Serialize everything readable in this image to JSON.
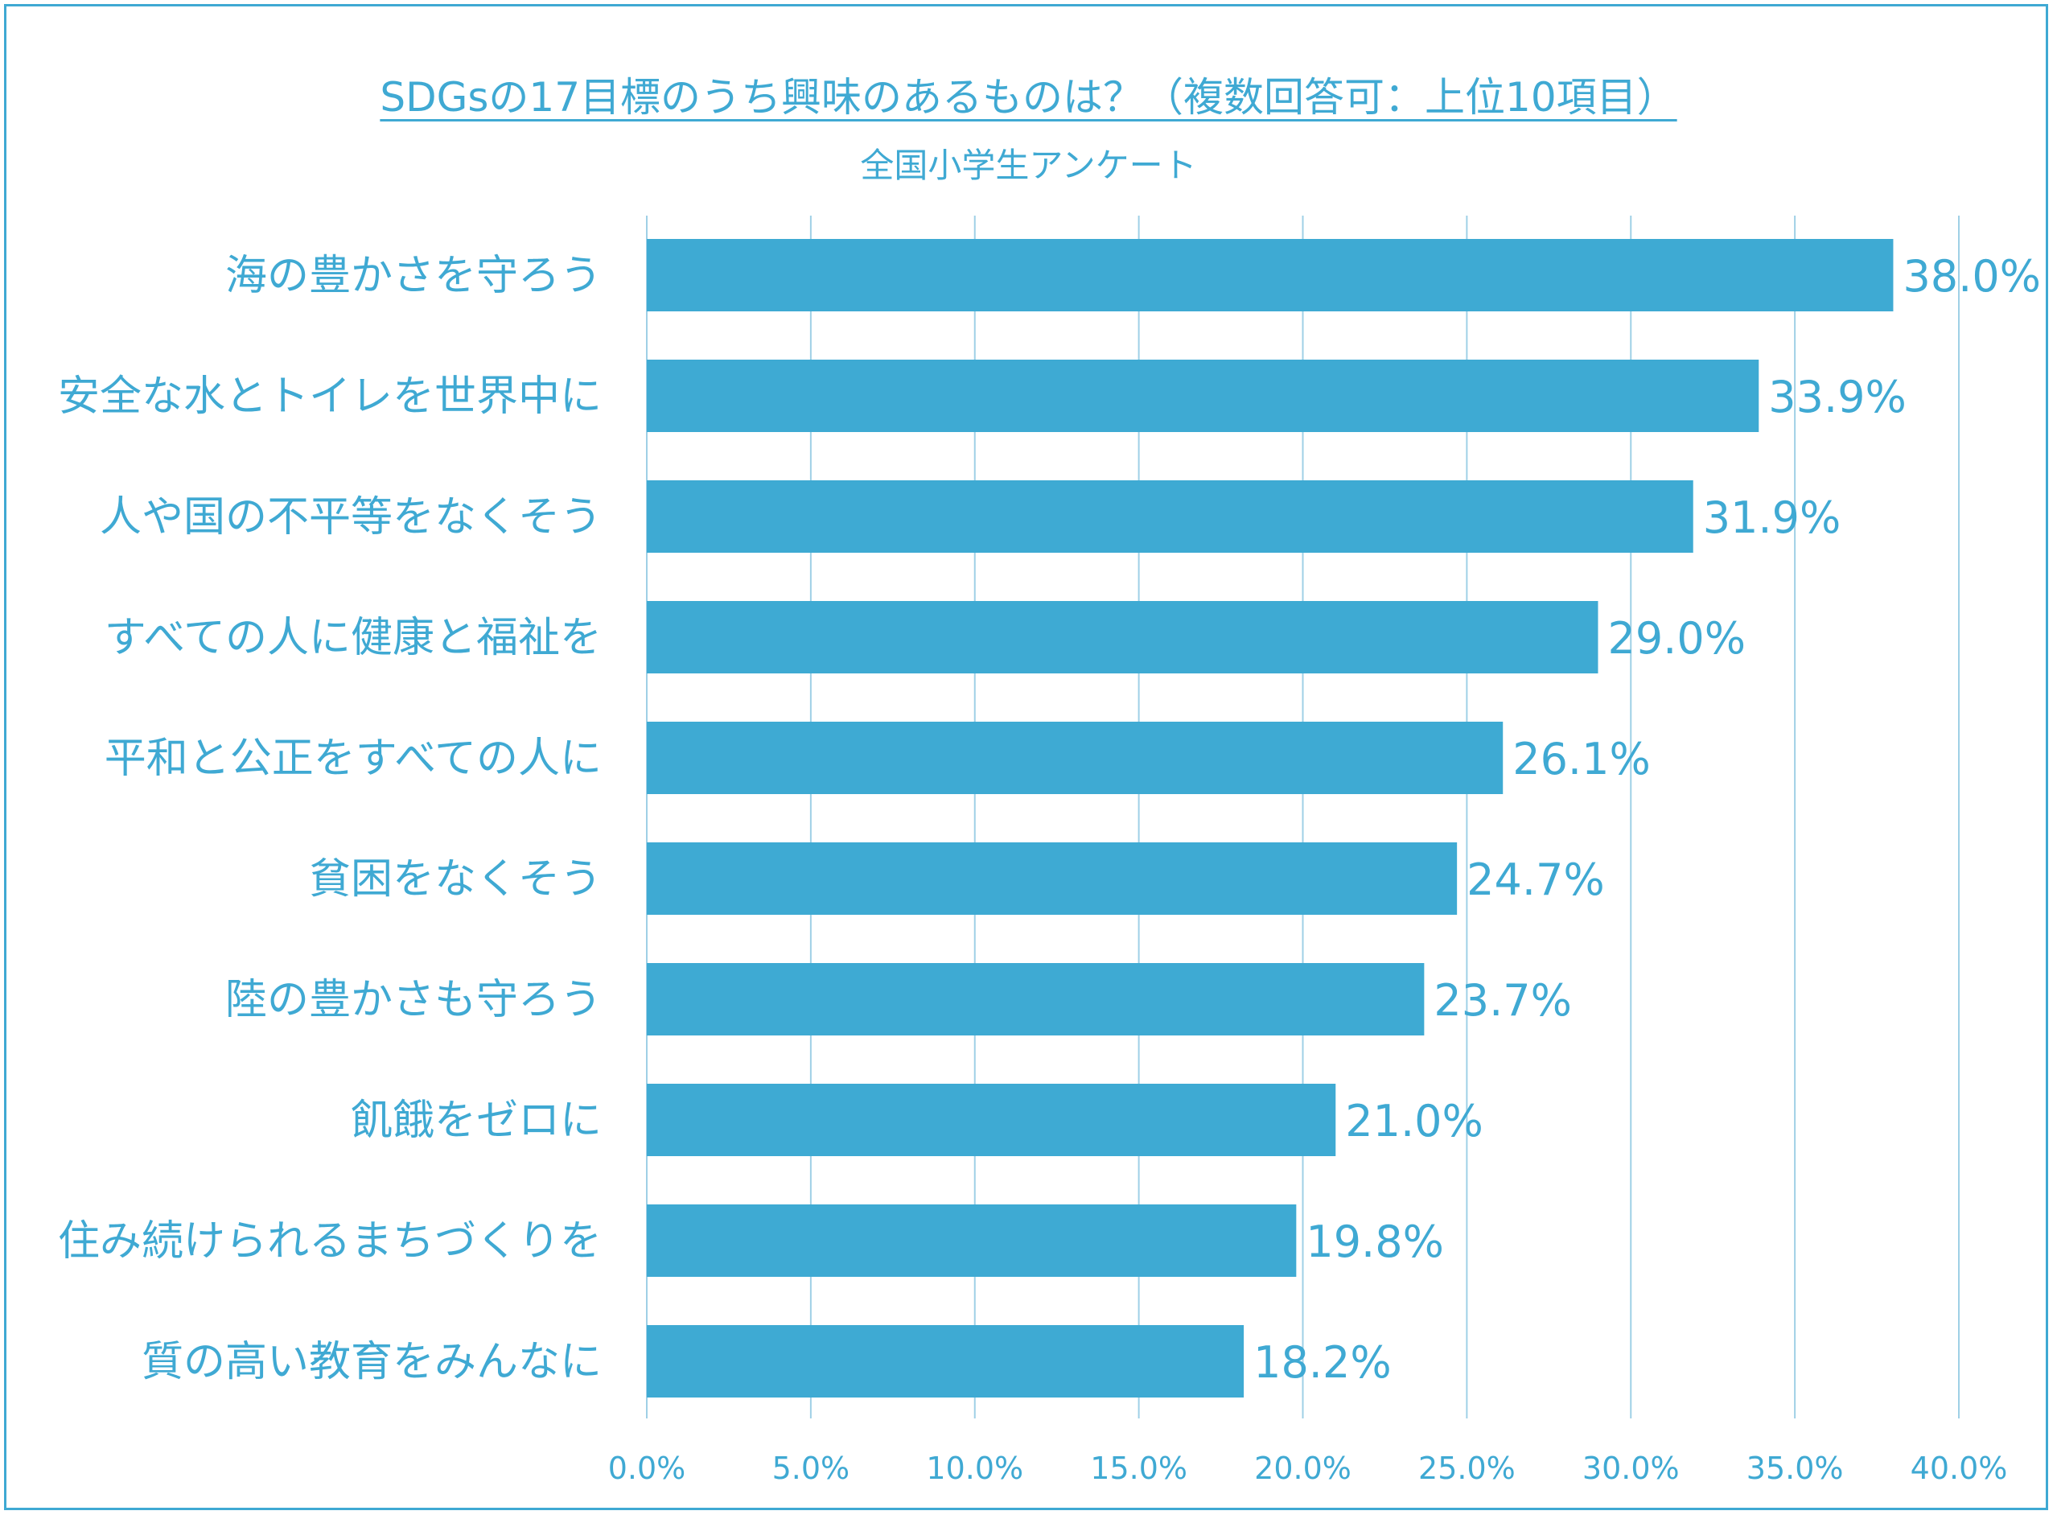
{
  "colors": {
    "bar": "#3eaad3",
    "text": "#3fa9d3",
    "grid": "#9fd0e6",
    "border": "#3fa9d3"
  },
  "chart_data": {
    "type": "bar",
    "orientation": "horizontal",
    "title": "SDGsの17目標のうち興味のあるものは？（複数回答可：上位10項目）",
    "subtitle": "全国小学生アンケート",
    "categories": [
      "海の豊かさを守ろう",
      "安全な水とトイレを世界中に",
      "人や国の不平等をなくそう",
      "すべての人に健康と福祉を",
      "平和と公正をすべての人に",
      "貧困をなくそう",
      "陸の豊かさも守ろう",
      "飢餓をゼロに",
      "住み続けられるまちづくりを",
      "質の高い教育をみんなに"
    ],
    "values": [
      38.0,
      33.9,
      31.9,
      29.0,
      26.1,
      24.7,
      23.7,
      21.0,
      19.8,
      18.2
    ],
    "value_labels": [
      "38.0%",
      "33.9%",
      "31.9%",
      "29.0%",
      "26.1%",
      "24.7%",
      "23.7%",
      "21.0%",
      "19.8%",
      "18.2%"
    ],
    "xlim": [
      0,
      40
    ],
    "xticks": [
      0,
      5,
      10,
      15,
      20,
      25,
      30,
      35,
      40
    ],
    "xtick_labels": [
      "0.0%",
      "5.0%",
      "10.0%",
      "15.0%",
      "20.0%",
      "25.0%",
      "30.0%",
      "35.0%",
      "40.0%"
    ],
    "grid": true,
    "legend": "none"
  }
}
